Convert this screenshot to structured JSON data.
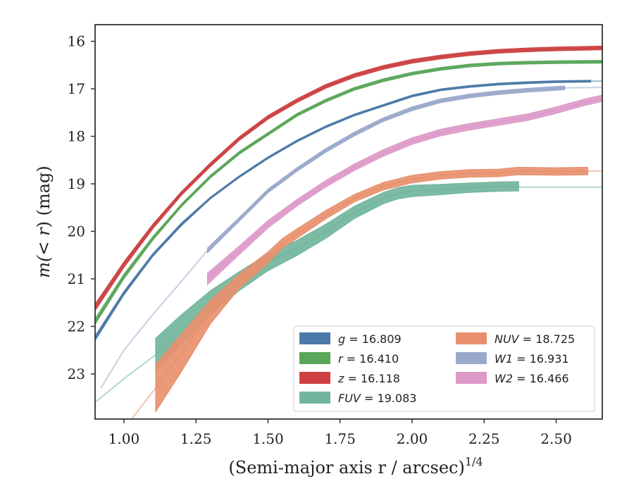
{
  "chart_data": {
    "type": "line",
    "title": "",
    "xlabel": "(Semi-major axis r / arcsec)",
    "xlabel_italic_var": "r",
    "xlabel_exponent": "1/4",
    "ylabel_prefix": "m(",
    "ylabel_var": "< r",
    "ylabel_suffix": ") (mag)",
    "xlim": [
      0.9,
      2.66
    ],
    "ylim": [
      23.95,
      15.65
    ],
    "y_inverted": true,
    "xticks": [
      "1.00",
      "1.25",
      "1.50",
      "1.75",
      "2.00",
      "2.25",
      "2.50"
    ],
    "yticks": [
      "16",
      "17",
      "18",
      "19",
      "20",
      "21",
      "22",
      "23"
    ],
    "grid": false,
    "legend_position": "lower-right",
    "series": [
      {
        "name": "g = 16.809",
        "band": "g",
        "value": "16.809",
        "color": "#4c7aa8",
        "x": [
          0.9,
          1.0,
          1.1,
          1.2,
          1.3,
          1.4,
          1.5,
          1.6,
          1.7,
          1.8,
          1.9,
          2.0,
          2.1,
          2.2,
          2.3,
          2.4,
          2.5,
          2.62
        ],
        "y": [
          22.25,
          21.3,
          20.5,
          19.85,
          19.3,
          18.85,
          18.45,
          18.1,
          17.8,
          17.55,
          17.35,
          17.15,
          17.02,
          16.95,
          16.9,
          16.87,
          16.85,
          16.84
        ],
        "y_err": [
          0.05,
          0.04,
          0.03,
          0.03,
          0.02,
          0.02,
          0.02,
          0.02,
          0.02,
          0.02,
          0.02,
          0.02,
          0.02,
          0.02,
          0.02,
          0.02,
          0.02,
          0.02
        ],
        "x_ext": [
          2.62,
          2.66
        ],
        "y_ext": [
          16.84,
          16.84
        ]
      },
      {
        "name": "r = 16.410",
        "band": "r",
        "value": "16.410",
        "color": "#5aa65a",
        "x": [
          0.9,
          1.0,
          1.1,
          1.2,
          1.3,
          1.4,
          1.5,
          1.6,
          1.7,
          1.8,
          1.9,
          2.0,
          2.1,
          2.2,
          2.3,
          2.4,
          2.5,
          2.66
        ],
        "y": [
          21.9,
          20.95,
          20.15,
          19.45,
          18.85,
          18.35,
          17.95,
          17.55,
          17.25,
          17.0,
          16.82,
          16.68,
          16.58,
          16.51,
          16.47,
          16.45,
          16.44,
          16.43
        ],
        "y_err": [
          0.06,
          0.05,
          0.04,
          0.03,
          0.03,
          0.03,
          0.03,
          0.03,
          0.03,
          0.03,
          0.03,
          0.03,
          0.03,
          0.03,
          0.03,
          0.03,
          0.03,
          0.03
        ]
      },
      {
        "name": "z = 16.118",
        "band": "z",
        "value": "16.118",
        "color": "#cc4040",
        "x": [
          0.9,
          1.0,
          1.1,
          1.2,
          1.3,
          1.4,
          1.5,
          1.6,
          1.7,
          1.8,
          1.9,
          2.0,
          2.1,
          2.2,
          2.3,
          2.4,
          2.5,
          2.66
        ],
        "y": [
          21.6,
          20.7,
          19.9,
          19.2,
          18.6,
          18.05,
          17.6,
          17.25,
          16.95,
          16.72,
          16.55,
          16.42,
          16.33,
          16.26,
          16.21,
          16.18,
          16.16,
          16.14
        ],
        "y_err": [
          0.07,
          0.06,
          0.05,
          0.04,
          0.04,
          0.04,
          0.04,
          0.04,
          0.04,
          0.04,
          0.04,
          0.04,
          0.04,
          0.04,
          0.04,
          0.04,
          0.04,
          0.04
        ]
      },
      {
        "name": "FUV = 19.083",
        "band": "FUV",
        "value": "19.083",
        "color": "#72b59c",
        "x": [
          1.11,
          1.2,
          1.3,
          1.4,
          1.5,
          1.6,
          1.7,
          1.8,
          1.9,
          1.95,
          2.0,
          2.1,
          2.2,
          2.3,
          2.37
        ],
        "y": [
          22.6,
          22.05,
          21.5,
          21.05,
          20.65,
          20.35,
          20.0,
          19.6,
          19.3,
          19.2,
          19.15,
          19.12,
          19.08,
          19.06,
          19.05
        ],
        "y_err": [
          0.35,
          0.3,
          0.25,
          0.2,
          0.18,
          0.16,
          0.15,
          0.13,
          0.12,
          0.12,
          0.12,
          0.11,
          0.1,
          0.1,
          0.1
        ],
        "x_ext_lo": [
          0.9,
          1.0,
          1.11
        ],
        "y_ext_lo": [
          23.6,
          23.1,
          22.6
        ],
        "x_ext_hi": [
          2.37,
          2.66
        ],
        "y_ext_hi": [
          19.07,
          19.07
        ]
      },
      {
        "name": "NUV = 18.725",
        "band": "NUV",
        "value": "18.725",
        "color": "#e8906e",
        "x": [
          1.11,
          1.2,
          1.3,
          1.4,
          1.5,
          1.55,
          1.6,
          1.7,
          1.8,
          1.9,
          2.0,
          2.1,
          2.2,
          2.3,
          2.37,
          2.5,
          2.61
        ],
        "y": [
          23.3,
          22.55,
          21.7,
          21.05,
          20.55,
          20.25,
          20.05,
          19.65,
          19.3,
          19.05,
          18.9,
          18.82,
          18.78,
          18.77,
          18.73,
          18.74,
          18.73
        ],
        "y_err": [
          0.5,
          0.4,
          0.25,
          0.15,
          0.12,
          0.1,
          0.1,
          0.09,
          0.08,
          0.08,
          0.08,
          0.08,
          0.08,
          0.08,
          0.08,
          0.08,
          0.08
        ],
        "x_ext_lo": [
          0.95,
          1.02,
          1.11
        ],
        "y_ext_lo": [
          24.7,
          24.0,
          23.3
        ],
        "x_ext_hi": [
          2.61,
          2.66
        ],
        "y_ext_hi": [
          18.73,
          18.73
        ]
      },
      {
        "name": "W1 = 16.931",
        "band": "W1",
        "value": "16.931",
        "color": "#9aa8cb",
        "x": [
          1.29,
          1.4,
          1.5,
          1.6,
          1.7,
          1.8,
          1.9,
          2.0,
          2.1,
          2.2,
          2.3,
          2.4,
          2.53
        ],
        "y": [
          20.4,
          19.75,
          19.15,
          18.7,
          18.3,
          17.95,
          17.65,
          17.42,
          17.25,
          17.15,
          17.08,
          17.03,
          16.98
        ],
        "y_err": [
          0.05,
          0.04,
          0.04,
          0.04,
          0.04,
          0.04,
          0.04,
          0.04,
          0.04,
          0.04,
          0.04,
          0.04,
          0.04
        ],
        "x_ext_lo": [
          0.92,
          1.0,
          1.1,
          1.2,
          1.29
        ],
        "y_ext_lo": [
          23.3,
          22.5,
          21.75,
          21.05,
          20.4
        ],
        "x_ext_hi": [
          2.53,
          2.66
        ],
        "y_ext_hi": [
          16.98,
          16.97
        ]
      },
      {
        "name": "W2 = 16.466",
        "band": "W2",
        "value": "16.466",
        "color": "#dd99c8",
        "x": [
          1.29,
          1.4,
          1.5,
          1.6,
          1.7,
          1.8,
          1.9,
          2.0,
          2.1,
          2.2,
          2.3,
          2.4,
          2.5,
          2.6,
          2.66
        ],
        "y": [
          21.0,
          20.4,
          19.85,
          19.4,
          19.0,
          18.65,
          18.35,
          18.1,
          17.92,
          17.8,
          17.7,
          17.6,
          17.45,
          17.28,
          17.2
        ],
        "y_err": [
          0.12,
          0.09,
          0.08,
          0.07,
          0.07,
          0.07,
          0.07,
          0.07,
          0.07,
          0.07,
          0.07,
          0.07,
          0.07,
          0.07,
          0.07
        ]
      }
    ]
  }
}
